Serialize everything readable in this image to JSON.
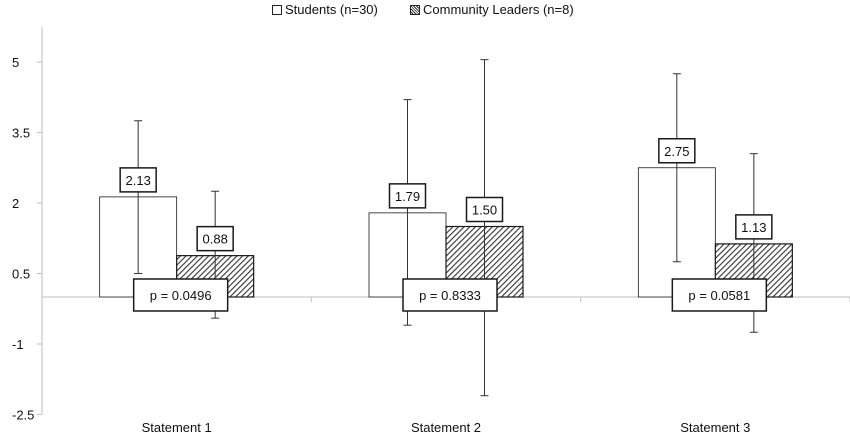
{
  "chart_data": {
    "type": "bar",
    "categories": [
      "Statement 1",
      "Statement 2",
      "Statement 3"
    ],
    "series": [
      {
        "name": "Students (n=30)",
        "values": [
          2.13,
          1.79,
          2.75
        ],
        "value_labels": [
          "2.13",
          "1.79",
          "2.75"
        ],
        "error_upper": [
          3.75,
          4.2,
          4.75
        ],
        "error_lower": [
          0.5,
          -0.6,
          0.75
        ],
        "fill": "#ffffff",
        "pattern": "none"
      },
      {
        "name": "Community Leaders  (n=8)",
        "values": [
          0.88,
          1.5,
          1.13
        ],
        "value_labels": [
          "0.88",
          "1.50",
          "1.13"
        ],
        "error_upper": [
          2.25,
          5.05,
          3.05
        ],
        "error_lower": [
          -0.45,
          -2.1,
          -0.75
        ],
        "fill": "#bfbfbf",
        "pattern": "diagonal-hatch"
      }
    ],
    "p_values": [
      "p = 0.0496",
      "p = 0.8333",
      "p = 0.0581"
    ],
    "yticks": [
      5,
      3.5,
      2,
      0.5,
      -1,
      -2.5
    ],
    "ytick_labels": [
      "5",
      "3.5",
      "2",
      "0.5",
      "-1",
      "-2.5"
    ],
    "ylim": [
      -2.5,
      5.75
    ],
    "title": "",
    "xlabel": "",
    "ylabel": "",
    "grid": false,
    "legend_position": "top-center"
  },
  "legend": {
    "students": "Students (n=30)",
    "leaders": "Community Leaders  (n=8)"
  },
  "colors": {
    "axis": "#bfbfbf",
    "bar_outline": "#1a1a1a",
    "text": "#111111"
  }
}
